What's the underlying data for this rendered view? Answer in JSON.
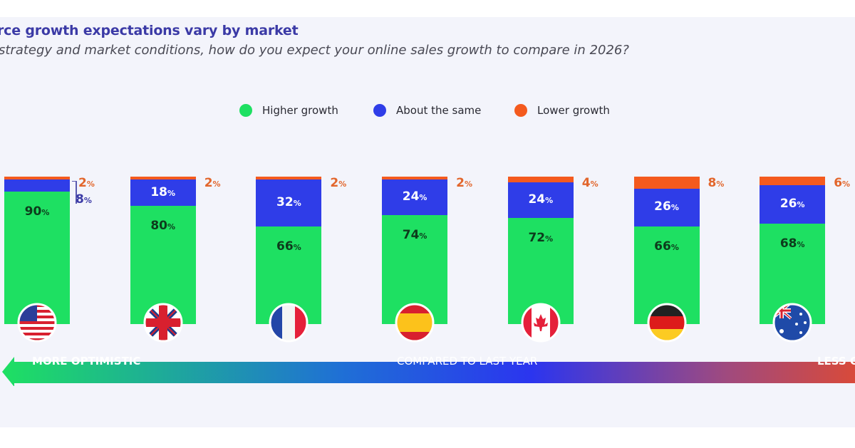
{
  "header": {
    "title": "rce growth expectations vary by market",
    "subtitle": "strategy and market conditions, how do you expect your online sales growth to compare in 2026?"
  },
  "colors": {
    "higher": "#1ee062",
    "same": "#2f3de8",
    "lower": "#f45a1e",
    "title": "#3b3aa6"
  },
  "chart_data": {
    "type": "bar",
    "stacked": true,
    "orientation": "vertical",
    "categories": [
      "United States",
      "United Kingdom",
      "France",
      "Spain",
      "Canada",
      "Germany",
      "Australia"
    ],
    "category_icons": [
      "us-flag",
      "uk-flag",
      "france-flag",
      "spain-flag",
      "canada-flag",
      "germany-flag",
      "australia-flag"
    ],
    "series": [
      {
        "name": "Higher growth",
        "values": [
          90,
          80,
          66,
          74,
          72,
          66,
          68
        ]
      },
      {
        "name": "About the same",
        "values": [
          8,
          18,
          32,
          24,
          24,
          26,
          26
        ]
      },
      {
        "name": "Lower growth",
        "values": [
          2,
          2,
          2,
          2,
          4,
          8,
          6
        ]
      }
    ],
    "ylim": [
      0,
      100
    ],
    "unit": "%",
    "legend": {
      "position": "top",
      "entries": [
        "Higher growth",
        "About the same",
        "Lower growth"
      ]
    },
    "grid": false
  },
  "scale": {
    "left_label": "MORE OPTIMISTIC",
    "center_label": "COMPARED TO LAST YEAR",
    "right_label": "LESS O"
  }
}
